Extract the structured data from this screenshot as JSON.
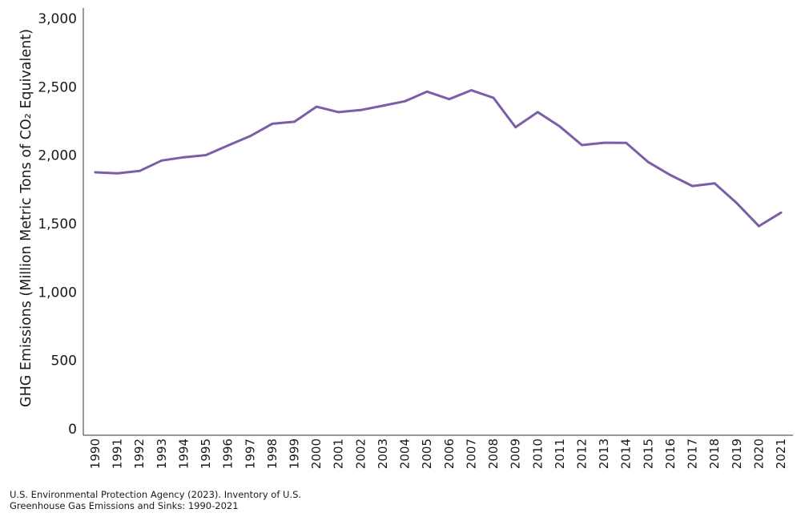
{
  "chart_data": {
    "type": "line",
    "ylabel": "GHG Emissions (Million Metric Tons of CO₂ Equivalent)",
    "xlabel": "",
    "ylim": [
      0,
      3000
    ],
    "yticks": [
      {
        "value": 0,
        "label": "0"
      },
      {
        "value": 500,
        "label": "500"
      },
      {
        "value": 1000,
        "label": "1,000"
      },
      {
        "value": 1500,
        "label": "1,500"
      },
      {
        "value": 2000,
        "label": "2,000"
      },
      {
        "value": 2500,
        "label": "2,500"
      },
      {
        "value": 3000,
        "label": "3,000"
      }
    ],
    "grid": false,
    "legend": "none",
    "line_color": "#7b5ea7",
    "categories": [
      "1990",
      "1991",
      "1992",
      "1993",
      "1994",
      "1995",
      "1996",
      "1997",
      "1998",
      "1999",
      "2000",
      "2001",
      "2002",
      "2003",
      "2004",
      "2005",
      "2006",
      "2007",
      "2008",
      "2009",
      "2010",
      "2011",
      "2012",
      "2013",
      "2014",
      "2015",
      "2016",
      "2017",
      "2018",
      "2019",
      "2020",
      "2021"
    ],
    "series": [
      {
        "values": [
          1875,
          1868,
          1885,
          1961,
          1985,
          2001,
          2071,
          2140,
          2230,
          2245,
          2355,
          2315,
          2330,
          2362,
          2395,
          2465,
          2410,
          2475,
          2420,
          2205,
          2315,
          2210,
          2074,
          2091,
          2090,
          1950,
          1855,
          1775,
          1795,
          1650,
          1482,
          1580
        ]
      }
    ]
  },
  "source": {
    "line1": "U.S. Environmental Protection Agency (2023). Inventory of U.S.",
    "line2": "Greenhouse Gas Emissions and Sinks: 1990-2021"
  }
}
